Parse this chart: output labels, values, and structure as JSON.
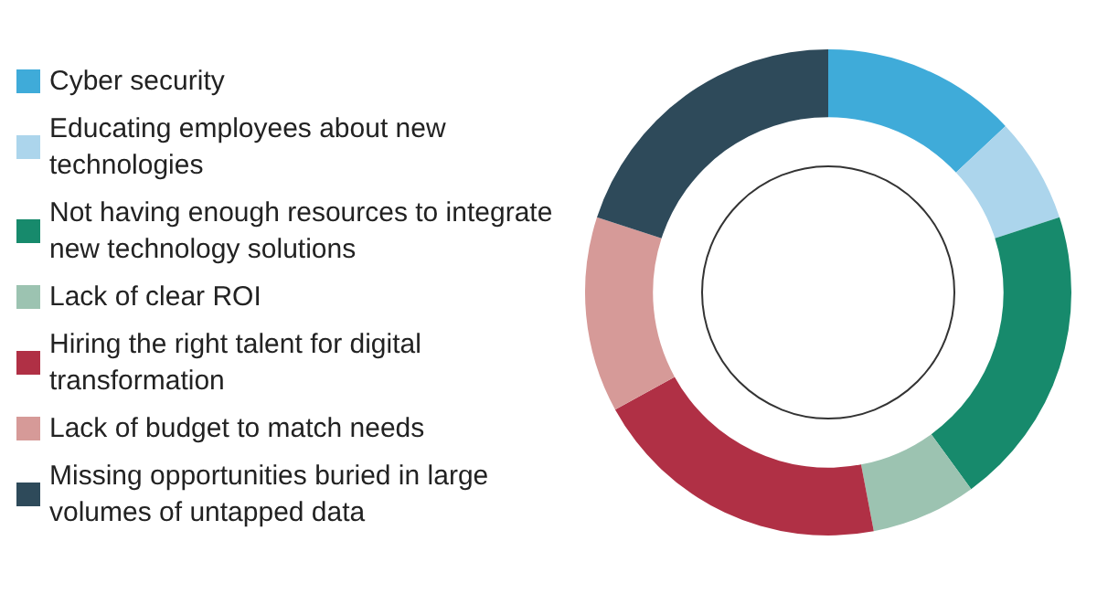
{
  "chart_data": {
    "type": "donut",
    "categories": [
      "Cyber security",
      "Educating employees about new technologies",
      "Not having enough resources to integrate new technology solutions",
      "Lack of clear ROI",
      "Hiring the right talent for digital transformation",
      "Lack of budget to match needs",
      "Missing opportunities buried in large volumes of untapped data"
    ],
    "values": [
      13,
      7,
      20,
      7,
      20,
      13,
      20
    ],
    "colors": [
      "#3fabd9",
      "#acd5ec",
      "#178a6c",
      "#9cc3b1",
      "#b03045",
      "#d69a98",
      "#2e4a5a"
    ],
    "legend": "left"
  }
}
